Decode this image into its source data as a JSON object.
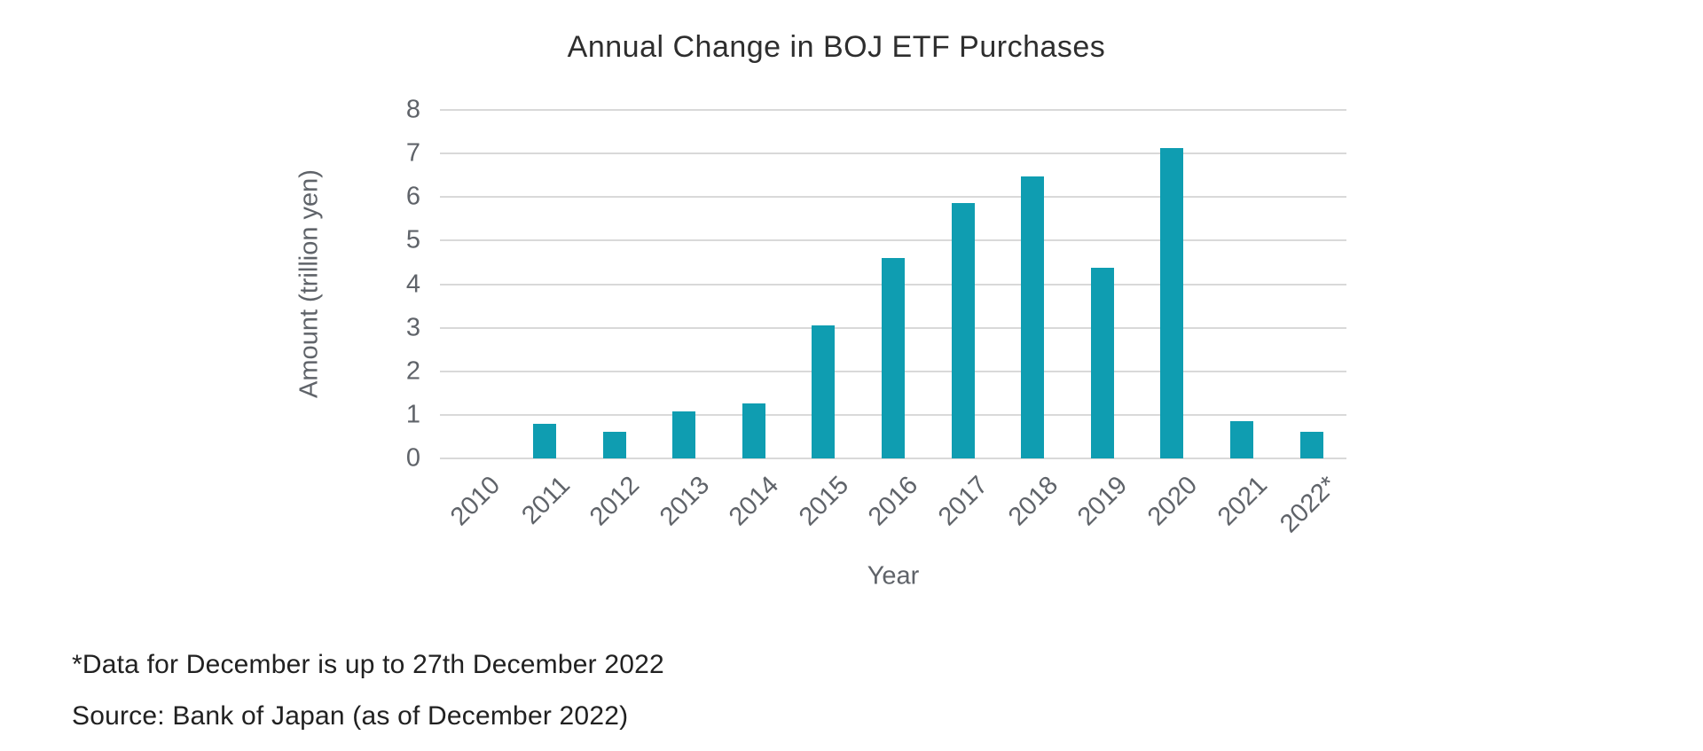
{
  "chart_data": {
    "type": "bar",
    "title": "Annual Change in BOJ ETF Purchases",
    "xlabel": "Year",
    "ylabel": "Amount (trillion yen)",
    "categories": [
      "2010",
      "2011",
      "2012",
      "2013",
      "2014",
      "2015",
      "2016",
      "2017",
      "2018",
      "2019",
      "2020",
      "2021",
      "2022*"
    ],
    "values": [
      0,
      0.8,
      0.61,
      1.08,
      1.27,
      3.06,
      4.6,
      5.87,
      6.48,
      4.37,
      7.12,
      0.86,
      0.62
    ],
    "ylim": [
      0,
      8
    ],
    "yticks": [
      0,
      1,
      2,
      3,
      4,
      5,
      6,
      7,
      8
    ],
    "grid": true,
    "legend": "none",
    "bar_color": "#0f9db1",
    "gridline_color": "#d9d9d9",
    "axis_text_color": "#5f6369",
    "title_color": "#2e2e2e"
  },
  "footnotes": {
    "line1": "*Data for December is up to 27th December 2022",
    "line2": "Source: Bank of Japan (as of December 2022)"
  }
}
